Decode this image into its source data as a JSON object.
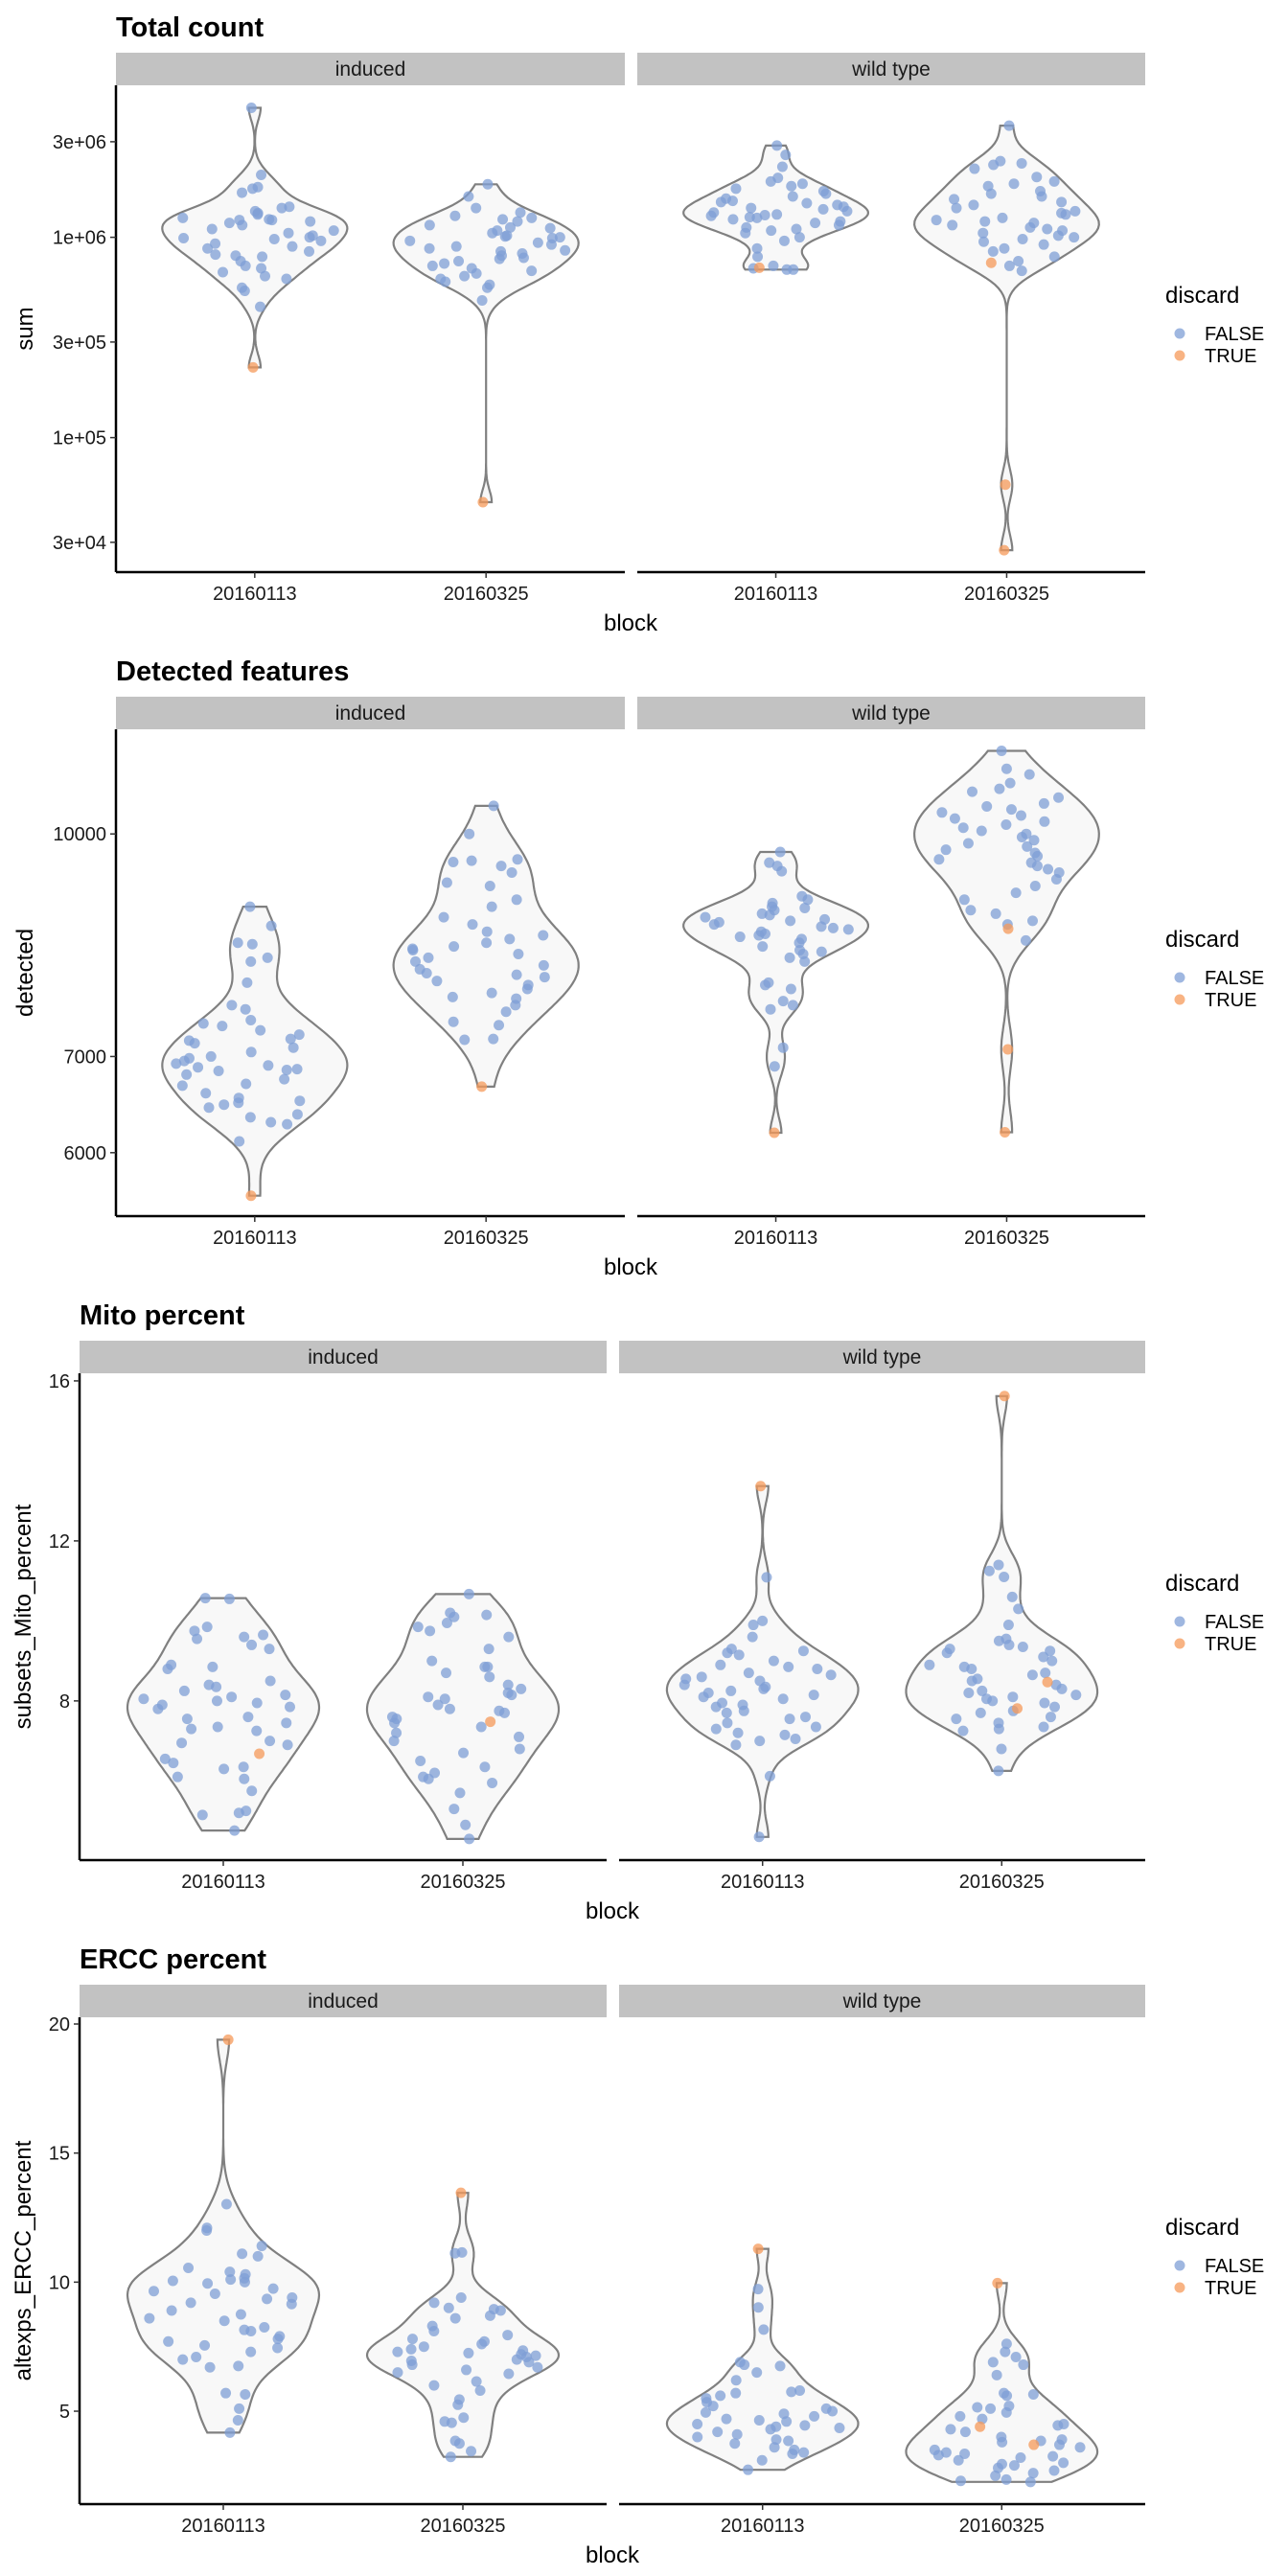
{
  "colors": {
    "FALSE": "#7f9fd6",
    "TRUE": "#f59a5a",
    "violin_stroke": "#808080",
    "violin_fill": "#f8f8f8",
    "strip_bg": "#c2c2c2"
  },
  "chart_data": [
    {
      "type": "violin",
      "title": "Total count",
      "xlabel": "block",
      "ylabel": "sum",
      "yscale": "log10",
      "ylim": [
        21300,
        5740000
      ],
      "yticks": [
        {
          "value": 30000,
          "label": "3e+04"
        },
        {
          "value": 100000,
          "label": "1e+05"
        },
        {
          "value": 300000,
          "label": "3e+05"
        },
        {
          "value": 1000000,
          "label": "1e+06"
        },
        {
          "value": 3000000,
          "label": "3e+06"
        }
      ],
      "facets": [
        "induced",
        "wild type"
      ],
      "categories": [
        "20160113",
        "20160325"
      ],
      "legend": {
        "title": "discard",
        "entries": [
          "FALSE",
          "TRUE"
        ],
        "position": "right"
      },
      "series": [
        {
          "facet": "induced",
          "category": "20160113",
          "FALSE": [
            4430000,
            2050000,
            1780000,
            1750000,
            1670000,
            1420000,
            1400000,
            1350000,
            1320000,
            1300000,
            1250000,
            1230000,
            1220000,
            1220000,
            1200000,
            1180000,
            1150000,
            1100000,
            1080000,
            1050000,
            1020000,
            1000000,
            990000,
            980000,
            960000,
            930000,
            900000,
            880000,
            850000,
            820000,
            810000,
            800000,
            760000,
            720000,
            700000,
            670000,
            640000,
            620000,
            560000,
            540000,
            450000
          ],
          "TRUE": [
            224000
          ]
        },
        {
          "facet": "induced",
          "category": "20160325",
          "FALSE": [
            1840000,
            1600000,
            1400000,
            1330000,
            1280000,
            1250000,
            1230000,
            1200000,
            1150000,
            1120000,
            1110000,
            1080000,
            1050000,
            1020000,
            1010000,
            1000000,
            990000,
            960000,
            940000,
            920000,
            900000,
            880000,
            860000,
            850000,
            830000,
            810000,
            790000,
            780000,
            760000,
            740000,
            720000,
            700000,
            680000,
            660000,
            640000,
            620000,
            600000,
            580000,
            560000,
            484000
          ],
          "TRUE": [
            47600
          ]
        },
        {
          "facet": "wild type",
          "category": "20160113",
          "FALSE": [
            2870000,
            2580000,
            2250000,
            1980000,
            1900000,
            1850000,
            1800000,
            1750000,
            1700000,
            1650000,
            1600000,
            1560000,
            1520000,
            1500000,
            1480000,
            1450000,
            1420000,
            1400000,
            1380000,
            1350000,
            1330000,
            1300000,
            1290000,
            1280000,
            1260000,
            1250000,
            1230000,
            1200000,
            1180000,
            1150000,
            1120000,
            1100000,
            1080000,
            1050000,
            1000000,
            960000,
            880000,
            800000,
            720000,
            700000,
            690000,
            690000
          ],
          "TRUE": [
            705000
          ]
        },
        {
          "facet": "wild type",
          "category": "20160325",
          "FALSE": [
            3610000,
            2400000,
            2340000,
            2300000,
            2200000,
            2000000,
            1900000,
            1850000,
            1800000,
            1700000,
            1650000,
            1600000,
            1550000,
            1500000,
            1450000,
            1400000,
            1350000,
            1320000,
            1300000,
            1250000,
            1220000,
            1200000,
            1180000,
            1150000,
            1120000,
            1100000,
            1080000,
            1050000,
            1020000,
            1000000,
            980000,
            950000,
            920000,
            880000,
            850000,
            800000,
            760000,
            720000,
            680000
          ],
          "TRUE": [
            746000,
            58200,
            27400
          ]
        }
      ]
    },
    {
      "type": "violin",
      "title": "Detected features",
      "xlabel": "block",
      "ylabel": "detected",
      "yscale": "log10",
      "ylim": [
        5420,
        11826
      ],
      "yticks": [
        {
          "value": 6000,
          "label": "6000"
        },
        {
          "value": 7000,
          "label": "7000"
        },
        {
          "value": 10000,
          "label": "10000"
        }
      ],
      "facets": [
        "induced",
        "wild type"
      ],
      "categories": [
        "20160113",
        "20160325"
      ],
      "legend": {
        "title": "discard",
        "entries": [
          "FALSE",
          "TRUE"
        ],
        "position": "right"
      },
      "series": [
        {
          "facet": "induced",
          "category": "20160113",
          "FALSE": [
            8900,
            8630,
            8400,
            8380,
            8200,
            8150,
            7880,
            7600,
            7550,
            7420,
            7380,
            7350,
            7300,
            7250,
            7200,
            7180,
            7150,
            7100,
            7050,
            7000,
            6980,
            6950,
            6920,
            6900,
            6880,
            6860,
            6850,
            6840,
            6800,
            6750,
            6700,
            6680,
            6600,
            6550,
            6520,
            6500,
            6480,
            6450,
            6380,
            6350,
            6300,
            6280,
            6110
          ],
          "TRUE": [
            5600
          ]
        },
        {
          "facet": "induced",
          "category": "20160325",
          "FALSE": [
            10460,
            10000,
            9600,
            9580,
            9560,
            9500,
            9400,
            9250,
            9200,
            9000,
            8900,
            8750,
            8650,
            8550,
            8500,
            8450,
            8400,
            8350,
            8320,
            8300,
            8250,
            8200,
            8150,
            8100,
            8050,
            8000,
            7980,
            7950,
            7900,
            7850,
            7800,
            7750,
            7700,
            7680,
            7600,
            7520,
            7400,
            7360,
            7200,
            7190
          ],
          "TRUE": [
            6670
          ]
        },
        {
          "facet": "wild type",
          "category": "20160113",
          "FALSE": [
            9716,
            9550,
            9500,
            9420,
            9050,
            9000,
            8950,
            8900,
            8880,
            8850,
            8800,
            8780,
            8750,
            8720,
            8700,
            8680,
            8650,
            8620,
            8600,
            8580,
            8550,
            8520,
            8500,
            8480,
            8450,
            8400,
            8350,
            8300,
            8280,
            8250,
            8200,
            8150,
            7880,
            7850,
            7800,
            7650,
            7600,
            7550,
            7100,
            6890
          ],
          "TRUE": [
            6195
          ]
        },
        {
          "facet": "wild type",
          "category": "20160325",
          "FALSE": [
            11425,
            11100,
            11000,
            10850,
            10750,
            10700,
            10600,
            10500,
            10450,
            10400,
            10350,
            10300,
            10250,
            10200,
            10150,
            10100,
            10050,
            10000,
            9950,
            9900,
            9850,
            9800,
            9750,
            9700,
            9650,
            9600,
            9550,
            9500,
            9450,
            9400,
            9300,
            9200,
            9100,
            9000,
            8850,
            8800,
            8700,
            8650,
            8430
          ],
          "TRUE": [
            8590,
            7080,
            6200
          ]
        }
      ]
    },
    {
      "type": "violin",
      "title": "Mito percent",
      "xlabel": "block",
      "ylabel": "subsets_Mito_percent",
      "yscale": "linear",
      "ylim": [
        4.02,
        16.19
      ],
      "yticks": [
        {
          "value": 8,
          "label": "8"
        },
        {
          "value": 12,
          "label": "12"
        },
        {
          "value": 16,
          "label": "16"
        }
      ],
      "facets": [
        "induced",
        "wild type"
      ],
      "categories": [
        "20160113",
        "20160325"
      ],
      "legend": {
        "title": "discard",
        "entries": [
          "FALSE",
          "TRUE"
        ],
        "position": "right"
      },
      "series": [
        {
          "facet": "induced",
          "category": "20160113",
          "FALSE": [
            10.57,
            10.55,
            9.85,
            9.75,
            9.65,
            9.6,
            9.55,
            9.4,
            9.3,
            8.9,
            8.85,
            8.8,
            8.5,
            8.4,
            8.35,
            8.25,
            8.15,
            8.1,
            8.05,
            8.0,
            7.95,
            7.9,
            7.85,
            7.8,
            7.6,
            7.55,
            7.45,
            7.35,
            7.3,
            7.25,
            7.0,
            6.95,
            6.9,
            6.55,
            6.45,
            6.35,
            6.3,
            6.1,
            6.05,
            5.75,
            5.25,
            5.2,
            5.15,
            4.76
          ],
          "TRUE": [
            6.68
          ]
        },
        {
          "facet": "induced",
          "category": "20160325",
          "FALSE": [
            10.67,
            10.2,
            10.15,
            10.1,
            9.95,
            9.85,
            9.75,
            9.6,
            9.3,
            9.0,
            8.85,
            8.85,
            8.7,
            8.6,
            8.4,
            8.3,
            8.2,
            8.15,
            8.1,
            8.05,
            7.9,
            7.8,
            7.75,
            7.7,
            7.6,
            7.55,
            7.45,
            7.35,
            7.2,
            7.1,
            7.0,
            6.8,
            6.7,
            6.5,
            6.35,
            6.2,
            6.1,
            6.05,
            5.95,
            5.7,
            5.3,
            4.9,
            4.55
          ],
          "TRUE": [
            7.48
          ]
        },
        {
          "facet": "wild type",
          "category": "20160113",
          "FALSE": [
            11.09,
            10.0,
            9.9,
            9.6,
            9.3,
            9.25,
            9.2,
            9.15,
            9.0,
            8.9,
            8.85,
            8.8,
            8.7,
            8.65,
            8.6,
            8.55,
            8.5,
            8.4,
            8.35,
            8.3,
            8.25,
            8.2,
            8.15,
            8.1,
            8.05,
            7.95,
            7.9,
            7.85,
            7.75,
            7.7,
            7.6,
            7.55,
            7.45,
            7.35,
            7.3,
            7.2,
            7.15,
            7.05,
            7.0,
            6.9,
            6.12,
            4.6
          ],
          "TRUE": [
            13.37
          ]
        },
        {
          "facet": "wild type",
          "category": "20160325",
          "FALSE": [
            11.4,
            11.25,
            11.1,
            10.6,
            10.3,
            9.9,
            9.55,
            9.5,
            9.4,
            9.35,
            9.3,
            9.25,
            9.2,
            9.1,
            9.0,
            8.9,
            8.85,
            8.8,
            8.7,
            8.65,
            8.55,
            8.5,
            8.4,
            8.3,
            8.25,
            8.2,
            8.15,
            8.1,
            8.05,
            8.0,
            7.95,
            7.85,
            7.75,
            7.7,
            7.6,
            7.55,
            7.45,
            7.35,
            7.3,
            7.25,
            6.8,
            6.25
          ],
          "TRUE": [
            15.62,
            8.47,
            7.81
          ]
        }
      ]
    },
    {
      "type": "violin",
      "title": "ERCC percent",
      "xlabel": "block",
      "ylabel": "altexps_ERCC_percent",
      "yscale": "linear",
      "ylim": [
        1.4,
        20.26
      ],
      "yticks": [
        {
          "value": 5,
          "label": "5"
        },
        {
          "value": 10,
          "label": "10"
        },
        {
          "value": 15,
          "label": "15"
        },
        {
          "value": 20,
          "label": "20"
        }
      ],
      "facets": [
        "induced",
        "wild type"
      ],
      "categories": [
        "20160113",
        "20160325"
      ],
      "legend": {
        "title": "discard",
        "entries": [
          "FALSE",
          "TRUE"
        ],
        "position": "right"
      },
      "series": [
        {
          "facet": "induced",
          "category": "20160113",
          "FALSE": [
            13.02,
            12.1,
            12.0,
            11.4,
            11.1,
            11.0,
            10.55,
            10.4,
            10.3,
            10.15,
            10.1,
            10.05,
            10.0,
            9.95,
            9.75,
            9.65,
            9.55,
            9.4,
            9.35,
            9.2,
            9.15,
            8.9,
            8.75,
            8.6,
            8.5,
            8.25,
            8.15,
            8.1,
            7.9,
            7.8,
            7.7,
            7.55,
            7.45,
            7.3,
            7.1,
            7.0,
            6.75,
            6.7,
            5.7,
            5.65,
            5.1,
            4.65,
            4.17
          ],
          "TRUE": [
            19.39
          ]
        },
        {
          "facet": "induced",
          "category": "20160325",
          "FALSE": [
            11.15,
            11.12,
            9.4,
            9.2,
            9.0,
            8.95,
            8.9,
            8.7,
            8.6,
            8.3,
            8.1,
            7.95,
            7.8,
            7.7,
            7.6,
            7.5,
            7.4,
            7.35,
            7.3,
            7.25,
            7.2,
            7.15,
            7.1,
            7.0,
            6.95,
            6.9,
            6.8,
            6.7,
            6.6,
            6.5,
            6.45,
            6.15,
            6.0,
            5.8,
            5.45,
            5.25,
            4.75,
            4.6,
            4.55,
            3.85,
            3.75,
            3.45,
            3.23
          ],
          "TRUE": [
            13.46
          ]
        },
        {
          "facet": "wild type",
          "category": "20160113",
          "FALSE": [
            9.73,
            9.02,
            8.16,
            6.9,
            6.8,
            6.75,
            6.5,
            6.2,
            5.8,
            5.75,
            5.7,
            5.6,
            5.5,
            5.35,
            5.2,
            5.1,
            5.0,
            4.95,
            4.9,
            4.8,
            4.7,
            4.65,
            4.6,
            4.5,
            4.45,
            4.4,
            4.35,
            4.3,
            4.2,
            4.1,
            4.0,
            3.9,
            3.85,
            3.75,
            3.6,
            3.5,
            3.4,
            3.35,
            3.1,
            2.73
          ],
          "TRUE": [
            11.29
          ]
        },
        {
          "facet": "wild type",
          "category": "20160325",
          "FALSE": [
            7.61,
            7.3,
            7.1,
            6.9,
            6.8,
            6.4,
            5.7,
            5.65,
            5.6,
            5.2,
            5.15,
            5.1,
            4.95,
            4.8,
            4.7,
            4.5,
            4.45,
            4.3,
            4.2,
            4.0,
            3.9,
            3.85,
            3.8,
            3.7,
            3.6,
            3.5,
            3.4,
            3.35,
            3.3,
            3.25,
            3.2,
            3.1,
            3.0,
            2.95,
            2.9,
            2.8,
            2.7,
            2.6,
            2.5,
            2.35,
            2.3,
            2.26
          ],
          "TRUE": [
            9.96,
            4.4,
            3.7
          ]
        }
      ]
    }
  ]
}
